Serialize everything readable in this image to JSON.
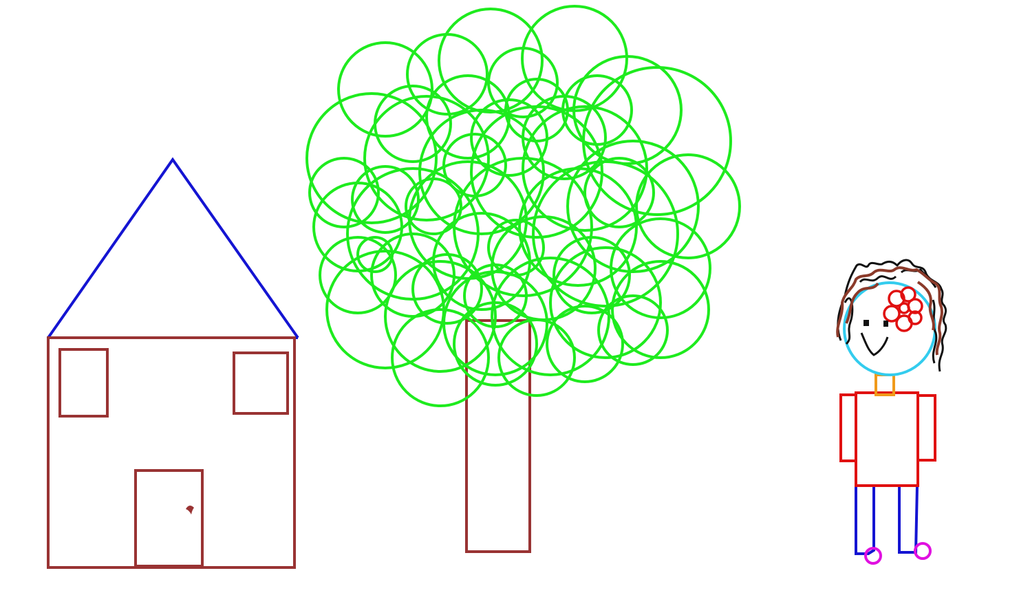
{
  "scene": {
    "background": "#ffffff",
    "colors": {
      "house_wall": "#993333",
      "roof": "#1414d2",
      "foliage": "#1eeb1e",
      "trunk": "#993333",
      "face": "#33ccee",
      "hair_dark": "#111111",
      "hair_brown": "#8b3a2a",
      "hair_bow": "#e01010",
      "neck": "#f09a1a",
      "shirt": "#e01010",
      "legs": "#1414d2",
      "feet": "#e010e0",
      "features": "#111111"
    },
    "objects": [
      "house",
      "tree",
      "person"
    ]
  }
}
